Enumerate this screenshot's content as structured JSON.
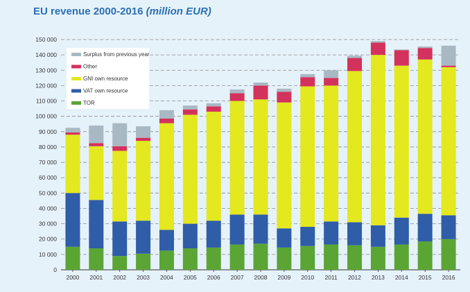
{
  "colors": {
    "background": "#e6f2fa",
    "title": "#2b6fb3",
    "TOR": "#5aa534",
    "VAT own resource": "#2f5da8",
    "GNI own resource": "#e3e81f",
    "Other": "#d3325c",
    "Surplus from previous year": "#a9b9c4"
  },
  "chart_data": {
    "type": "bar",
    "stacked": true,
    "title": "EU revenue 2000-2016",
    "title_unit": "(million EUR)",
    "xlabel": "",
    "ylabel": "",
    "ylim": [
      0,
      150000
    ],
    "yticks": [
      0,
      10000,
      20000,
      30000,
      40000,
      50000,
      60000,
      70000,
      80000,
      90000,
      100000,
      110000,
      120000,
      130000,
      140000,
      150000
    ],
    "ytick_labels": [
      "0",
      "10 000",
      "20 000",
      "30 000",
      "40 000",
      "50 000",
      "60 000",
      "70 000",
      "80 000",
      "90 000",
      "100 000",
      "110 000",
      "120 000",
      "130 000",
      "140 000",
      "150 000"
    ],
    "grid": "horizontal dashed",
    "legend_position": "top-left",
    "categories": [
      "2000",
      "2001",
      "2002",
      "2003",
      "2004",
      "2005",
      "2006",
      "2007",
      "2008",
      "2009",
      "2010",
      "2011",
      "2012",
      "2013",
      "2014",
      "2015",
      "2016"
    ],
    "series": [
      {
        "name": "TOR",
        "values": [
          15000,
          14000,
          9000,
          10500,
          12500,
          14000,
          14500,
          16500,
          17000,
          14500,
          15500,
          16500,
          16000,
          15000,
          16500,
          18500,
          20000
        ]
      },
      {
        "name": "VAT own resource",
        "values": [
          35000,
          31500,
          22500,
          21500,
          13500,
          16000,
          17500,
          19500,
          19000,
          12500,
          12500,
          15000,
          15000,
          14000,
          17500,
          18000,
          15500
        ]
      },
      {
        "name": "GNI own resource",
        "values": [
          38000,
          35000,
          46000,
          52000,
          69500,
          71000,
          71000,
          74000,
          75000,
          82000,
          91500,
          88500,
          98500,
          111000,
          99000,
          100500,
          96500
        ]
      },
      {
        "name": "Other",
        "values": [
          1500,
          2000,
          3000,
          2000,
          3000,
          3500,
          3500,
          5000,
          9000,
          7000,
          6000,
          5000,
          8500,
          8000,
          10000,
          7500,
          1000
        ]
      },
      {
        "name": "Surplus from previous year",
        "values": [
          3000,
          11500,
          15000,
          7500,
          5500,
          2500,
          2000,
          2500,
          2000,
          2000,
          2000,
          5000,
          1500,
          1000,
          500,
          1000,
          13000
        ]
      }
    ],
    "legend_order": [
      "Surplus from previous year",
      "Other",
      "GNI own resource",
      "VAT own resource",
      "TOR"
    ]
  }
}
